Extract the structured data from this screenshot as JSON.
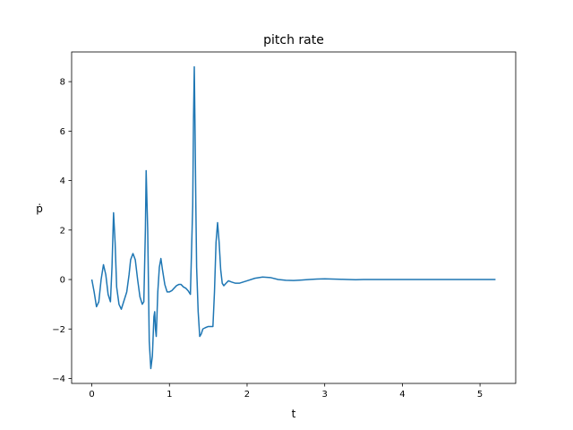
{
  "chart_data": {
    "type": "line",
    "title": "pitch rate",
    "xlabel": "t",
    "ylabel": "ṗ",
    "xlim": [
      -0.26,
      5.46
    ],
    "ylim": [
      -4.2,
      9.2
    ],
    "xticks": [
      0,
      1,
      2,
      3,
      4,
      5
    ],
    "yticks": [
      -4,
      -2,
      0,
      2,
      4,
      6,
      8
    ],
    "grid": false,
    "line_color": "#1f77b4",
    "series": [
      {
        "x": [
          0.0,
          0.03,
          0.06,
          0.09,
          0.12,
          0.15,
          0.18,
          0.21,
          0.24,
          0.26,
          0.28,
          0.3,
          0.32,
          0.35,
          0.38,
          0.42,
          0.45,
          0.48,
          0.5,
          0.53,
          0.56,
          0.59,
          0.62,
          0.65,
          0.67,
          0.69,
          0.7,
          0.72,
          0.74,
          0.76,
          0.78,
          0.8,
          0.81,
          0.82,
          0.83,
          0.85,
          0.87,
          0.89,
          0.91,
          0.94,
          0.97,
          1.0,
          1.03,
          1.06,
          1.09,
          1.12,
          1.15,
          1.18,
          1.21,
          1.24,
          1.27,
          1.3,
          1.31,
          1.32,
          1.33,
          1.34,
          1.35,
          1.37,
          1.39,
          1.41,
          1.43,
          1.46,
          1.5,
          1.53,
          1.56,
          1.58,
          1.6,
          1.62,
          1.64,
          1.66,
          1.68,
          1.7,
          1.73,
          1.76,
          1.8,
          1.85,
          1.9,
          2.0,
          2.1,
          2.2,
          2.3,
          2.4,
          2.5,
          2.6,
          2.7,
          2.8,
          2.9,
          3.0,
          3.1,
          3.2,
          3.3,
          3.4,
          3.5,
          3.6,
          3.7,
          3.8,
          3.9,
          4.0,
          4.5,
          5.0,
          5.2
        ],
        "y": [
          0.0,
          -0.5,
          -1.1,
          -0.9,
          0.0,
          0.6,
          0.2,
          -0.6,
          -0.9,
          0.5,
          2.7,
          1.5,
          -0.3,
          -1.0,
          -1.2,
          -0.8,
          -0.5,
          0.2,
          0.8,
          1.05,
          0.8,
          0.0,
          -0.7,
          -1.0,
          -0.9,
          2.0,
          4.4,
          2.0,
          -2.5,
          -3.6,
          -3.1,
          -1.5,
          -1.3,
          -2.0,
          -2.3,
          -0.5,
          0.5,
          0.85,
          0.4,
          -0.2,
          -0.5,
          -0.5,
          -0.45,
          -0.35,
          -0.25,
          -0.2,
          -0.2,
          -0.3,
          -0.35,
          -0.45,
          -0.6,
          3.0,
          6.5,
          8.6,
          6.0,
          3.0,
          0.5,
          -1.3,
          -2.3,
          -2.2,
          -2.0,
          -1.95,
          -1.9,
          -1.9,
          -1.9,
          -0.5,
          1.5,
          2.3,
          1.5,
          0.4,
          -0.15,
          -0.25,
          -0.15,
          -0.05,
          -0.1,
          -0.15,
          -0.15,
          -0.05,
          0.05,
          0.1,
          0.08,
          0.0,
          -0.03,
          -0.04,
          -0.02,
          0.0,
          0.02,
          0.03,
          0.02,
          0.01,
          0.0,
          -0.01,
          0.0,
          0.0,
          0.0,
          0.0,
          0.0,
          0.0,
          0.0,
          0.0,
          0.0
        ]
      }
    ]
  }
}
